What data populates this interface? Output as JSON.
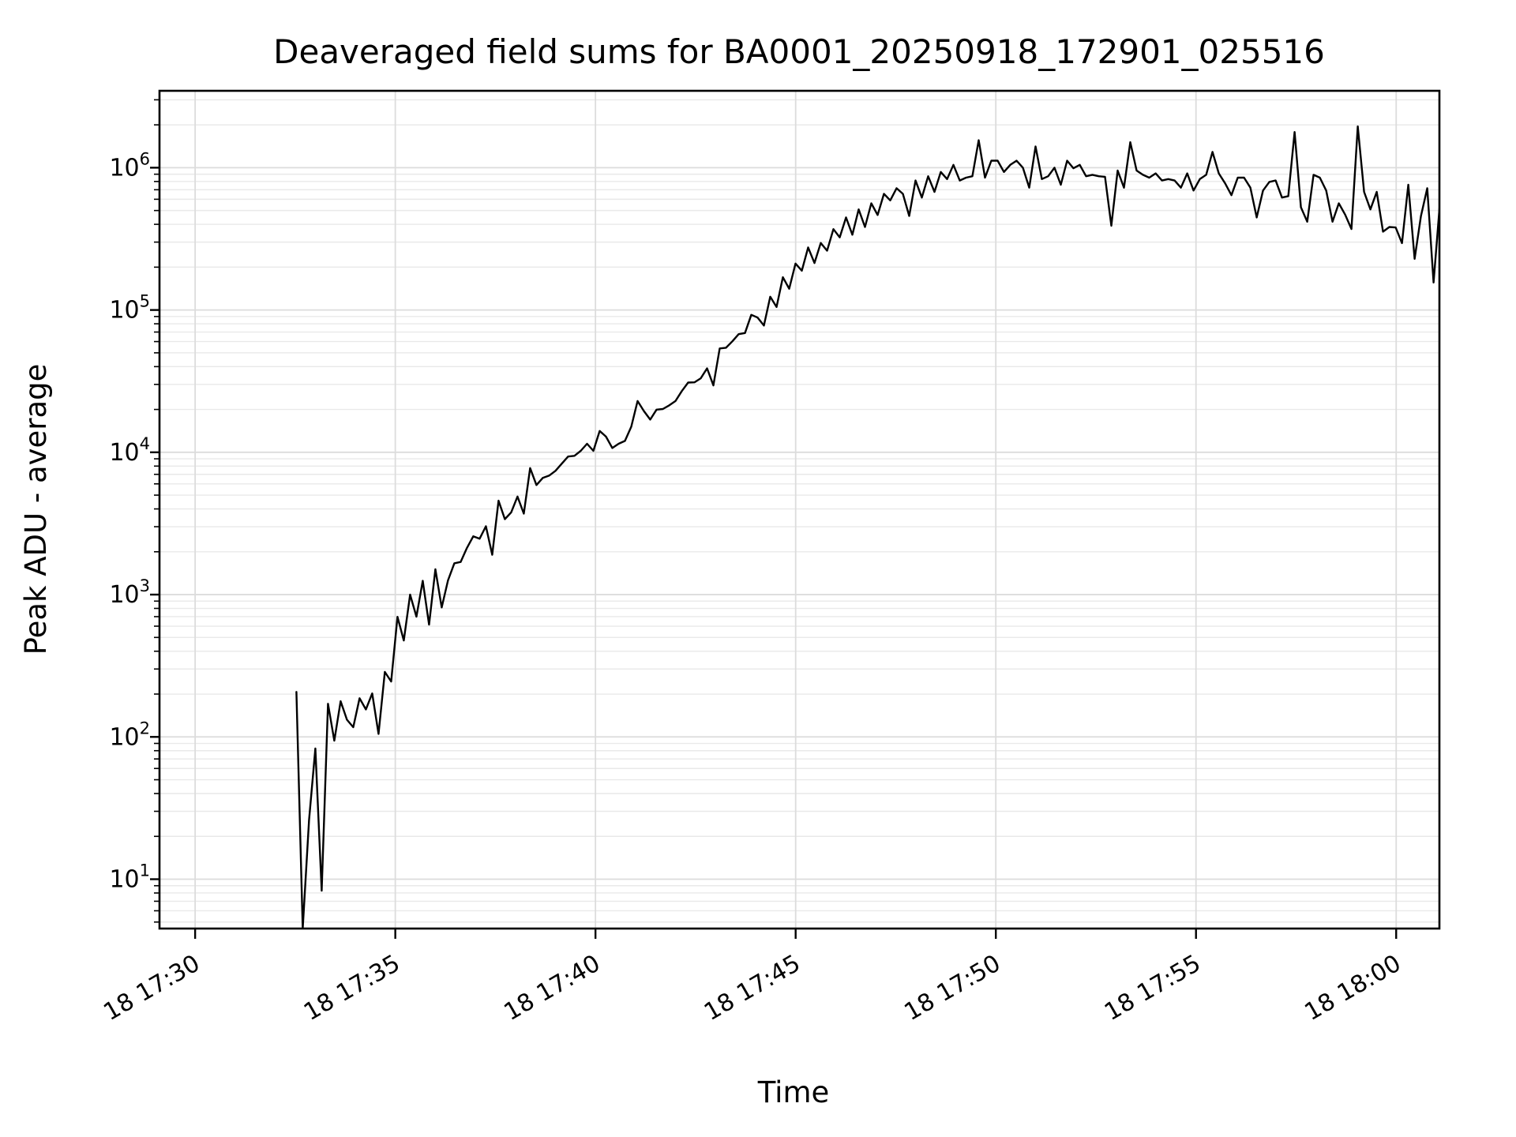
{
  "page": {
    "background": "#ffffff"
  },
  "style": {
    "line_color": "#000000",
    "spine_color": "#000000",
    "grid_major_color": "#dcdcdc",
    "grid_minor_color": "#e9e9e9",
    "text_color": "#000000"
  },
  "chart_data": {
    "type": "line",
    "title": "Deaveraged field sums for BA0001_20250918_172901_025516",
    "xlabel": "Time",
    "ylabel": "Peak ADU - average",
    "grid": "both-major-and-minor, light gray",
    "legend": "none",
    "x_axis": {
      "kind": "time",
      "reference": "minutes after day-18 17:30",
      "min_minutes": -0.89,
      "max_minutes": 31.08,
      "tick_minutes": [
        0,
        5,
        10,
        15,
        20,
        25,
        30
      ],
      "tick_labels": [
        "18 17:30",
        "18 17:35",
        "18 17:40",
        "18 17:45",
        "18 17:50",
        "18 17:55",
        "18 18:00"
      ],
      "tick_label_rotation_deg": -30
    },
    "y_axis": {
      "kind": "log",
      "min": 4.5,
      "max": 3470000,
      "tick_exponents": [
        1,
        2,
        3,
        4,
        5,
        6
      ],
      "tick_label_base": "10",
      "minor_mantissas": [
        2,
        3,
        4,
        5,
        6,
        7,
        8,
        9
      ]
    },
    "series": [
      {
        "name": "Peak ADU - average",
        "color": "#000000",
        "t_start_min": 2.53,
        "t_step_min": 0.1578,
        "values": [
          207,
          4.5,
          26,
          83,
          8.3,
          171,
          94,
          178,
          132,
          117,
          187,
          156,
          202,
          105,
          286,
          245,
          698,
          476,
          1000,
          700,
          1250,
          615,
          1507,
          813,
          1260,
          1660,
          1697,
          2128,
          2570,
          2470,
          3020,
          1905,
          4570,
          3388,
          3784,
          4886,
          3706,
          7745,
          5888,
          6606,
          6855,
          7413,
          8318,
          9333,
          9441,
          10233,
          11482,
          10233,
          14125,
          12882,
          10715,
          11482,
          12023,
          15136,
          22909,
          19498,
          16982,
          19953,
          20137,
          21380,
          22909,
          26915,
          30903,
          31046,
          33113,
          38905,
          29512,
          53703,
          54325,
          60256,
          67608,
          68900,
          92500,
          88500,
          77800,
          124000,
          105000,
          170000,
          141000,
          212000,
          189000,
          275000,
          214000,
          296000,
          261000,
          370000,
          324000,
          447000,
          338000,
          509000,
          383000,
          562000,
          465000,
          655000,
          589000,
          717000,
          655000,
          458000,
          813000,
          617000,
          871000,
          676000,
          933000,
          832000,
          1047000,
          813000,
          851000,
          871000,
          1560000,
          851000,
          1120000,
          1120000,
          933000,
          1047000,
          1120000,
          1000000,
          724000,
          1410000,
          832000,
          871000,
          1000000,
          759000,
          1120000,
          991000,
          1047000,
          871000,
          891000,
          871000,
          862000,
          391000,
          955000,
          724000,
          1510000,
          955000,
          891000,
          851000,
          912000,
          813000,
          832000,
          813000,
          724000,
          912000,
          691000,
          832000,
          891000,
          1290000,
          912000,
          776000,
          641000,
          851000,
          851000,
          724000,
          447000,
          691000,
          794000,
          813000,
          617000,
          631000,
          1780000,
          527000,
          417000,
          891000,
          851000,
          691000,
          417000,
          562000,
          468000,
          371000,
          1950000,
          676000,
          509000,
          676000,
          355000,
          383000,
          380000,
          295000,
          759000,
          229000,
          457000,
          717000,
          156000,
          562000
        ]
      }
    ]
  }
}
